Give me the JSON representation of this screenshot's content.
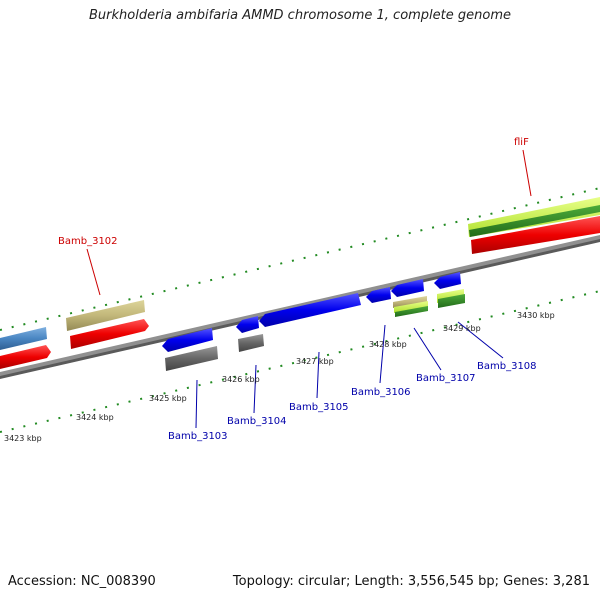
{
  "title": "Burkholderia ambifaria AMMD chromosome 1, complete genome",
  "footer": {
    "accession": "Accession: NC_008390",
    "summary": "Topology: circular; Length: 3,556,545 bp; Genes: 3,281"
  },
  "ticks": [
    "3423 kbp",
    "3424 kbp",
    "3425 kbp",
    "3426 kbp",
    "3427 kbp",
    "3428 kbp",
    "3429 kbp",
    "3430 kbp"
  ],
  "genes_top": [
    "Bamb_3102",
    "fliF"
  ],
  "genes_bottom": [
    "Bamb_3103",
    "Bamb_3104",
    "Bamb_3105",
    "Bamb_3106",
    "Bamb_3107",
    "Bamb_3108"
  ],
  "colors": {
    "cds_forward": "#ff0000",
    "cds_reverse": "#0000ff",
    "backbone": "#888888",
    "tick_green": "#228b22"
  }
}
